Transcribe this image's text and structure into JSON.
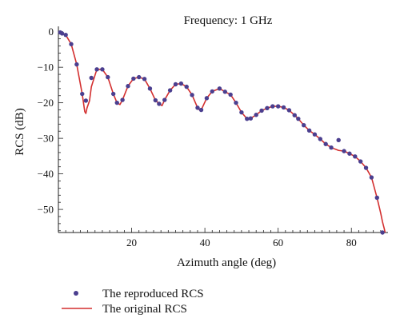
{
  "chart_data": {
    "type": "line",
    "title": "Frequency: 1 GHz",
    "xlabel": "Azimuth angle (deg)",
    "ylabel": "RCS (dB)",
    "xlim": [
      0,
      90
    ],
    "ylim": [
      -56.5,
      1.5
    ],
    "x_ticks": [
      20,
      40,
      60,
      80
    ],
    "y_ticks": [
      0,
      -10,
      -20,
      -30,
      -40,
      -50
    ],
    "grid": false,
    "legend_position": "bottom-left",
    "series": [
      {
        "name": "The reproduced RCS",
        "style": "markers",
        "color": "#4b3f8f",
        "x": [
          0.5,
          1.0,
          2.0,
          3.5,
          5.0,
          6.5,
          7.5,
          9.0,
          10.5,
          12.0,
          13.5,
          15.0,
          16.0,
          17.5,
          19.0,
          20.5,
          22.0,
          23.5,
          25.0,
          26.5,
          27.5,
          29.0,
          30.5,
          32.0,
          33.5,
          35.0,
          36.5,
          38.0,
          39.0,
          40.5,
          42.0,
          44.0,
          45.5,
          47.0,
          48.5,
          50.0,
          51.5,
          52.5,
          54.0,
          55.5,
          57.0,
          58.5,
          60.0,
          61.5,
          63.0,
          64.5,
          65.5,
          67.0,
          68.5,
          70.0,
          71.5,
          73.0,
          74.5,
          76.5,
          78.0,
          79.5,
          81.0,
          82.5,
          84.0,
          85.5,
          87.0,
          88.5
        ],
        "y": [
          -0.2,
          -0.5,
          -0.9,
          -3.5,
          -9.2,
          -17.5,
          -19.4,
          -13.0,
          -10.6,
          -10.6,
          -12.8,
          -17.5,
          -20.0,
          -19.2,
          -15.3,
          -13.2,
          -12.8,
          -13.3,
          -16.0,
          -19.3,
          -20.3,
          -19.2,
          -16.5,
          -14.8,
          -14.6,
          -15.5,
          -17.8,
          -21.4,
          -22.0,
          -18.7,
          -16.8,
          -16.0,
          -16.9,
          -17.7,
          -20.0,
          -22.7,
          -24.5,
          -24.4,
          -23.4,
          -22.2,
          -21.5,
          -21.0,
          -21.0,
          -21.3,
          -22.1,
          -23.5,
          -24.5,
          -26.3,
          -27.8,
          -28.9,
          -30.2,
          -31.6,
          -32.6,
          -30.5,
          -33.6,
          -34.3,
          -35.1,
          -36.5,
          -38.3,
          -41.0,
          -46.7,
          -56.5
        ]
      },
      {
        "name": "The original RCS",
        "style": "line",
        "color": "#d32f2f",
        "x": [
          0.0,
          0.5,
          1.0,
          2.0,
          3.5,
          5.0,
          6.5,
          7.2,
          7.5,
          7.8,
          8.5,
          9.0,
          10.5,
          12.0,
          13.5,
          15.0,
          16.0,
          16.8,
          17.5,
          19.0,
          20.5,
          22.0,
          23.5,
          25.0,
          26.5,
          27.5,
          28.3,
          29.0,
          30.5,
          32.0,
          33.5,
          35.0,
          36.5,
          38.0,
          38.7,
          39.0,
          40.5,
          42.0,
          44.0,
          45.5,
          47.0,
          48.5,
          50.0,
          51.5,
          52.5,
          54.0,
          55.5,
          57.0,
          58.5,
          60.0,
          61.5,
          63.0,
          64.5,
          65.5,
          67.0,
          68.5,
          70.0,
          71.5,
          73.0,
          74.5,
          76.5,
          78.0,
          79.5,
          81.0,
          82.5,
          84.0,
          85.5,
          87.0,
          88.0,
          88.5,
          89.0,
          89.3
        ],
        "y": [
          0.0,
          -0.2,
          -0.5,
          -0.9,
          -3.5,
          -9.2,
          -17.5,
          -22.5,
          -23.0,
          -21.5,
          -19.4,
          -15.5,
          -10.6,
          -10.6,
          -12.8,
          -17.5,
          -20.0,
          -20.5,
          -19.2,
          -15.3,
          -13.2,
          -12.8,
          -13.3,
          -16.0,
          -19.3,
          -20.3,
          -20.8,
          -19.2,
          -16.5,
          -14.8,
          -14.6,
          -15.5,
          -17.8,
          -21.4,
          -22.2,
          -22.0,
          -18.7,
          -16.8,
          -16.0,
          -16.9,
          -17.7,
          -20.0,
          -22.7,
          -24.5,
          -24.4,
          -23.4,
          -22.2,
          -21.5,
          -21.0,
          -21.0,
          -21.3,
          -22.1,
          -23.5,
          -24.5,
          -26.3,
          -27.8,
          -28.9,
          -30.2,
          -31.6,
          -32.6,
          -33.4,
          -33.6,
          -34.3,
          -35.1,
          -36.5,
          -38.3,
          -41.0,
          -46.7,
          -51.0,
          -53.5,
          -55.5,
          -57.0
        ]
      }
    ]
  }
}
